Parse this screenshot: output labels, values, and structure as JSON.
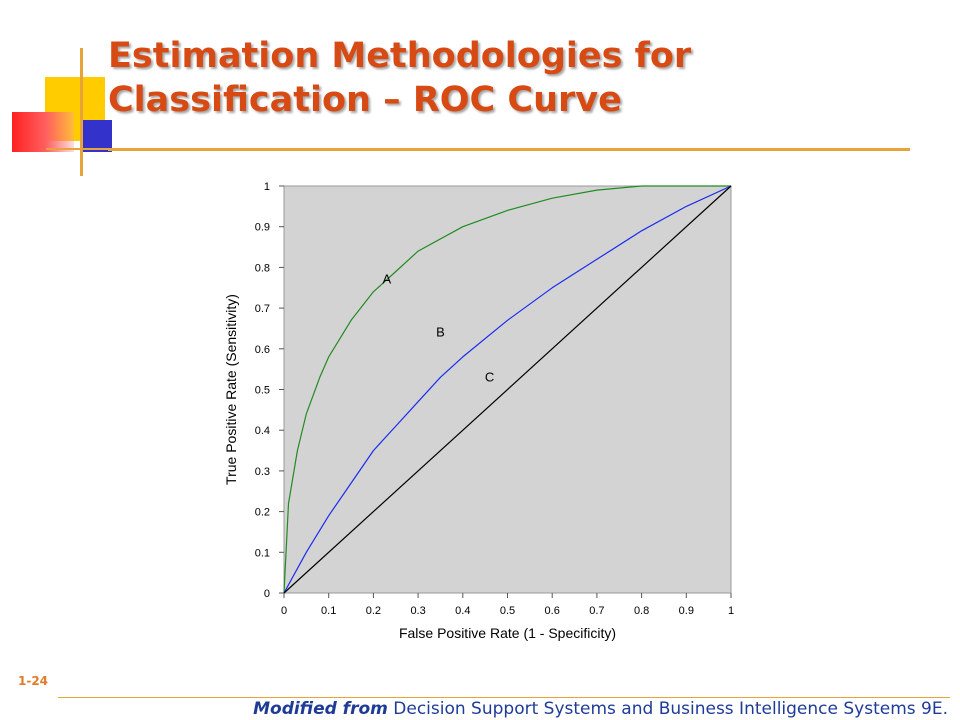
{
  "slide": {
    "title_line1": "Estimation Methodologies for",
    "title_line2": "Classification – ROC Curve",
    "slide_number": "1-24",
    "footer_emphasis": "Modified from",
    "footer_text": "Decision Support Systems and Business Intelligence Systems 9E."
  },
  "colors": {
    "title": "#d84a13",
    "accent_line": "#e8a33a",
    "plot_background": "#d3d3d3",
    "curve_a": "#228b22",
    "curve_b": "#1a2cf0",
    "curve_c": "#000000",
    "footer": "#1e3c96"
  },
  "chart_data": {
    "type": "line",
    "title": "",
    "xlabel": "False Positive Rate (1 - Specificity)",
    "ylabel": "True Positive Rate (Sensitivity)",
    "xlim": [
      0,
      1
    ],
    "ylim": [
      0,
      1
    ],
    "xticks": [
      "0",
      "0.1",
      "0.2",
      "0.3",
      "0.4",
      "0.5",
      "0.6",
      "0.7",
      "0.8",
      "0.9",
      "1"
    ],
    "yticks": [
      "0",
      "0.1",
      "0.2",
      "0.3",
      "0.4",
      "0.5",
      "0.6",
      "0.7",
      "0.8",
      "0.9",
      "1"
    ],
    "grid": false,
    "legend": "none",
    "series": [
      {
        "name": "A",
        "color": "#228b22",
        "x": [
          0,
          0.01,
          0.03,
          0.05,
          0.08,
          0.1,
          0.15,
          0.2,
          0.25,
          0.3,
          0.4,
          0.5,
          0.6,
          0.7,
          0.8,
          0.9,
          1
        ],
        "y": [
          0,
          0.22,
          0.35,
          0.44,
          0.53,
          0.58,
          0.67,
          0.74,
          0.79,
          0.84,
          0.9,
          0.94,
          0.97,
          0.99,
          1.0,
          1.0,
          1.0
        ],
        "label_at": [
          0.23,
          0.76
        ]
      },
      {
        "name": "B",
        "color": "#1a2cf0",
        "x": [
          0,
          0.05,
          0.1,
          0.15,
          0.2,
          0.25,
          0.3,
          0.35,
          0.4,
          0.5,
          0.6,
          0.7,
          0.8,
          0.9,
          1
        ],
        "y": [
          0,
          0.1,
          0.19,
          0.27,
          0.35,
          0.41,
          0.47,
          0.53,
          0.58,
          0.67,
          0.75,
          0.82,
          0.89,
          0.95,
          1
        ],
        "label_at": [
          0.35,
          0.63
        ]
      },
      {
        "name": "C",
        "color": "#000000",
        "x": [
          0,
          1
        ],
        "y": [
          0,
          1
        ],
        "label_at": [
          0.46,
          0.52
        ]
      }
    ]
  }
}
